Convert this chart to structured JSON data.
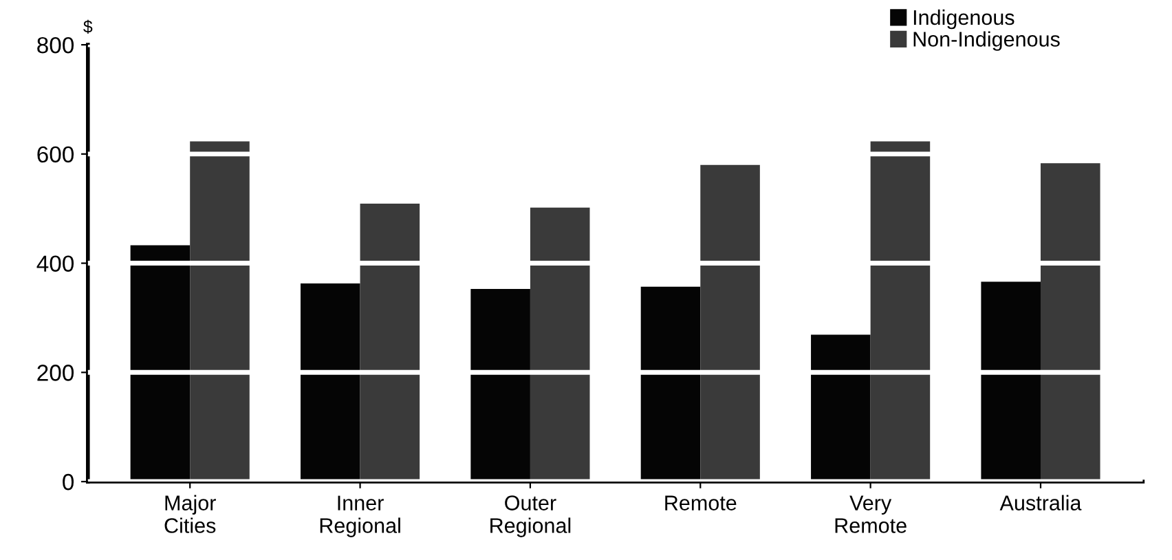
{
  "chart_data": {
    "type": "bar",
    "ylabel": "$",
    "categories": [
      "Major\nCities",
      "Inner\nRegional",
      "Outer\nRegional",
      "Remote",
      "Very\nRemote",
      "Australia"
    ],
    "series": [
      {
        "name": "Indigenous",
        "color": "#050505",
        "values": [
          433,
          363,
          353,
          357,
          269,
          366
        ]
      },
      {
        "name": "Non-Indigenous",
        "color": "#3a3a3a",
        "values": [
          623,
          509,
          502,
          580,
          623,
          583
        ]
      }
    ],
    "ylim": [
      0,
      800
    ],
    "yticks": [
      0,
      200,
      400,
      600,
      800
    ],
    "grid": "y",
    "legend": "top right"
  }
}
